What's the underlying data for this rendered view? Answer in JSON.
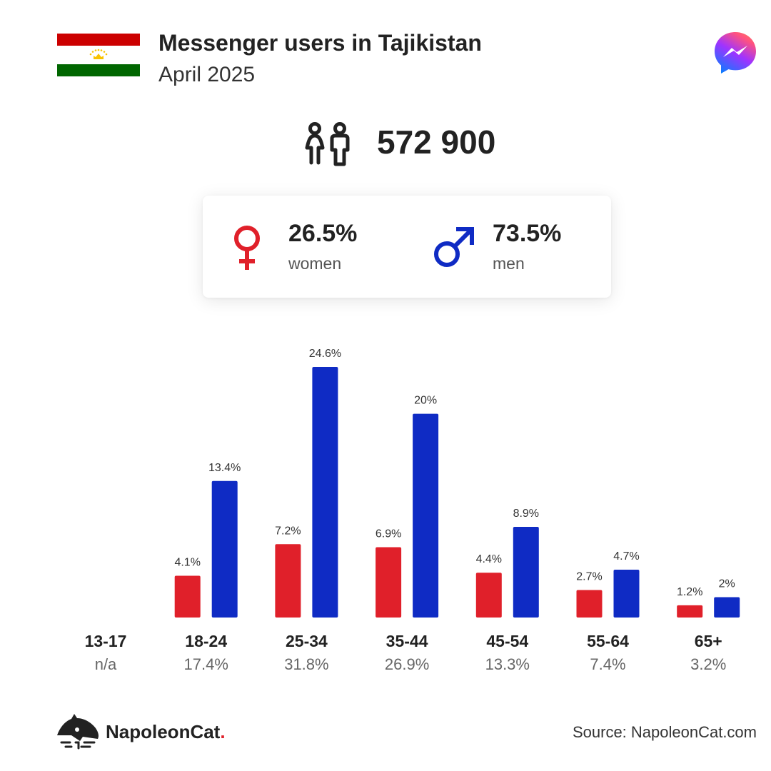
{
  "header": {
    "title": "Messenger users in Tajikistan",
    "subtitle": "April 2025",
    "flag_colors": {
      "top": "#cc0000",
      "middle": "#ffffff",
      "bottom": "#006600",
      "emblem": "#f8c300"
    },
    "logo_icon": "messenger-logo-icon"
  },
  "total": {
    "value": "572 900",
    "icon": "people-icon"
  },
  "gender": {
    "women": {
      "percent": "26.5%",
      "label": "women",
      "color": "#e0202a",
      "icon": "female-symbol-icon"
    },
    "men": {
      "percent": "73.5%",
      "label": "men",
      "color": "#0f2bc4",
      "icon": "male-symbol-icon"
    }
  },
  "chart_data": {
    "type": "bar",
    "categories": [
      "13-17",
      "18-24",
      "25-34",
      "35-44",
      "45-54",
      "55-64",
      "65+"
    ],
    "category_totals": [
      "n/a",
      "17.4%",
      "31.8%",
      "26.9%",
      "13.3%",
      "7.4%",
      "3.2%"
    ],
    "series": [
      {
        "color": "#e0202a",
        "values": [
          null,
          4.1,
          7.2,
          6.9,
          4.4,
          2.7,
          1.2
        ],
        "labels": [
          "",
          "4.1%",
          "7.2%",
          "6.9%",
          "4.4%",
          "2.7%",
          "1.2%"
        ]
      },
      {
        "color": "#0f2bc4",
        "values": [
          null,
          13.4,
          24.6,
          20,
          8.9,
          4.7,
          2
        ],
        "labels": [
          "",
          "13.4%",
          "24.6%",
          "20%",
          "8.9%",
          "4.7%",
          "2%"
        ]
      }
    ],
    "ylim": [
      0,
      24.6
    ],
    "grid": false,
    "legend": "none"
  },
  "footer": {
    "brand": "NapoleonCat",
    "brand_dot": ".",
    "brand_icon": "napoleoncat-logo-icon",
    "source": "Source: NapoleonCat.com"
  }
}
